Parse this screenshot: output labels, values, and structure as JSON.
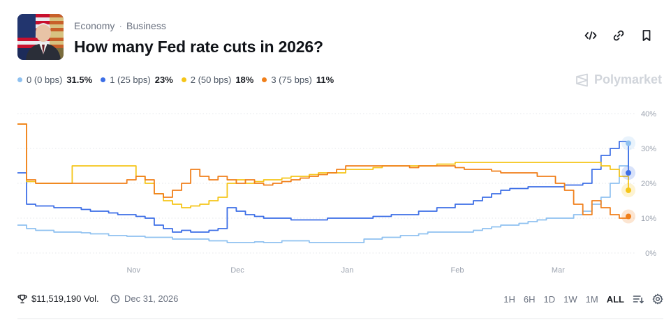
{
  "header": {
    "breadcrumb": [
      "Economy",
      "Business"
    ],
    "title": "How many Fed rate cuts in 2026?",
    "actions": [
      "embed-icon",
      "link-icon",
      "bookmark-icon"
    ]
  },
  "legend": [
    {
      "label": "0 (0 bps)",
      "pct": "31.5%",
      "color": "#8fc1f0"
    },
    {
      "label": "1 (25 bps)",
      "pct": "23%",
      "color": "#3c6ee6"
    },
    {
      "label": "2 (50 bps)",
      "pct": "18%",
      "color": "#f5c518"
    },
    {
      "label": "3 (75 bps)",
      "pct": "11%",
      "color": "#f07f1a"
    }
  ],
  "brand": "Polymarket",
  "footer": {
    "volume": "$11,519,190 Vol.",
    "end_date": "Dec 31, 2026",
    "ranges": [
      "1H",
      "6H",
      "1D",
      "1W",
      "1M",
      "ALL"
    ],
    "active_range": "ALL"
  },
  "chart_data": {
    "type": "line",
    "x_tick_labels": [
      "Nov",
      "Dec",
      "Jan",
      "Feb",
      "Mar"
    ],
    "y_tick_labels": [
      "0%",
      "10%",
      "20%",
      "30%",
      "40%"
    ],
    "ylim": [
      0,
      40
    ],
    "grid": true,
    "series": [
      {
        "name": "0 (0 bps)",
        "color": "#8fc1f0",
        "values": [
          8,
          7,
          6.5,
          6.5,
          6,
          6,
          6,
          5.8,
          5.5,
          5.5,
          5,
          5,
          4.8,
          4.8,
          4.5,
          4.5,
          4.5,
          4,
          4,
          4,
          4,
          3.5,
          3.5,
          3,
          3,
          3,
          3.2,
          3,
          3,
          3.5,
          3.5,
          3.5,
          3,
          3,
          3,
          3,
          3,
          3,
          4,
          4,
          4.5,
          4.5,
          5,
          5,
          5.5,
          6,
          6,
          6,
          6,
          6,
          6.5,
          7,
          7.5,
          8,
          8,
          8.5,
          9,
          9.5,
          10,
          10,
          10,
          11,
          12,
          14,
          16,
          20,
          25,
          31.5
        ]
      },
      {
        "name": "1 (25 bps)",
        "color": "#3c6ee6",
        "values": [
          23,
          14,
          13.5,
          13.5,
          13,
          13,
          13,
          12.5,
          12,
          12,
          11.5,
          11,
          11,
          10.5,
          10,
          8,
          7,
          6,
          6.5,
          6,
          6,
          6.5,
          7,
          13,
          12,
          11,
          10.5,
          10,
          10,
          10,
          9.5,
          9.5,
          9.5,
          9.5,
          10,
          10,
          10,
          10,
          10,
          10.5,
          10.5,
          11,
          11,
          11,
          12,
          12,
          13,
          13,
          14,
          14,
          15,
          16,
          17,
          18,
          18.5,
          18.5,
          19,
          19,
          19,
          19,
          19.5,
          19.5,
          20,
          24,
          28,
          30,
          32,
          23
        ]
      },
      {
        "name": "2 (50 bps)",
        "color": "#f5c518",
        "values": [
          37,
          20.5,
          20,
          20,
          20,
          20,
          25,
          25,
          25,
          25,
          25,
          25,
          25,
          22,
          20,
          17,
          15,
          14,
          13,
          13.5,
          14,
          15,
          16,
          20,
          21,
          20,
          20.5,
          21,
          21,
          21.5,
          22,
          22,
          22.5,
          23,
          23,
          23,
          24,
          24,
          24,
          24.5,
          25,
          25,
          25,
          25,
          25,
          25,
          25.5,
          25.5,
          26,
          26,
          26,
          26,
          26,
          26,
          26,
          26,
          26,
          26,
          26,
          26,
          26,
          26,
          26,
          26,
          25,
          24,
          22,
          18
        ]
      },
      {
        "name": "3 (75 bps)",
        "color": "#f07f1a",
        "values": [
          37,
          21,
          20,
          20,
          20,
          20,
          20,
          20,
          20,
          20,
          20,
          20,
          21,
          22,
          21,
          17,
          16,
          18,
          20,
          24,
          22,
          21,
          22,
          21,
          20,
          21,
          20,
          19.5,
          20,
          20.5,
          21,
          21.5,
          22,
          22.5,
          23,
          24,
          25,
          25,
          25,
          25,
          25,
          25,
          25,
          24.5,
          25,
          25,
          25,
          25,
          24.5,
          24,
          24,
          24,
          23.5,
          23,
          23,
          23,
          23,
          22,
          22,
          20,
          18,
          14,
          11,
          15,
          13,
          11,
          10,
          10.5
        ]
      }
    ]
  }
}
